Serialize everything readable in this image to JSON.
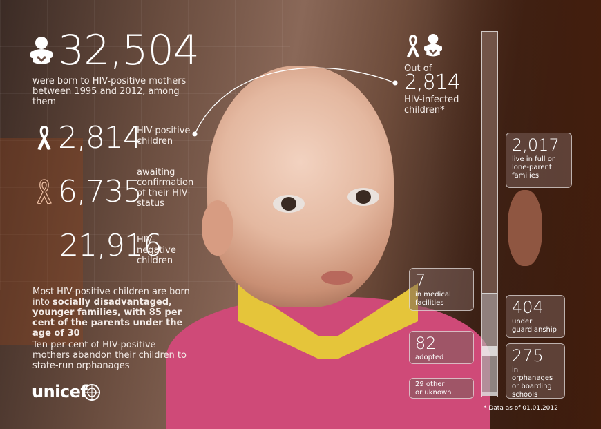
{
  "stats": {
    "born_total": "32,504",
    "born_desc": "were born to HIV-positive mothers between 1995 and 2012, among them",
    "positive": {
      "value": "2,814",
      "label": "HIV-positive children"
    },
    "awaiting": {
      "value": "6,735",
      "label": "awaiting confirmation of their HIV-status"
    },
    "negative": {
      "value": "21,916",
      "label": "HIV-negative children"
    }
  },
  "notes": {
    "p1_plain": "Most HIV-positive children are born into",
    "p1_bold": "socially disadvantaged, younger families, with 85 per cent of the parents under the age of 30",
    "p2": "Ten per cent of HIV-positive mothers abandon their children to state-run orphanages"
  },
  "breakdown": {
    "out_of": "Out of",
    "total": "2,814",
    "total_label": "HIV-infected children*",
    "items": [
      {
        "value": "2,017",
        "label": "live in full or lone-parent families",
        "share": 0.7168
      },
      {
        "value": "7",
        "label": "in medical facilities",
        "share": 0.0025
      },
      {
        "value": "404",
        "label": "under guardianship",
        "share": 0.1436
      },
      {
        "value": "82",
        "label": "adopted",
        "share": 0.0291
      },
      {
        "value": "275",
        "label": "in orphanages or boarding schools",
        "share": 0.0977
      },
      {
        "value": "29 other",
        "label": "or uknown",
        "share": 0.0103
      }
    ],
    "footnote": "* Data as of 01.01.2012"
  },
  "brand": {
    "logo_text": "unicef"
  },
  "icons": {
    "baby": "baby-icon",
    "ribbon": "ribbon-icon",
    "ribbon_outline": "ribbon-outline-icon",
    "emblem": "unicef-emblem-icon"
  }
}
